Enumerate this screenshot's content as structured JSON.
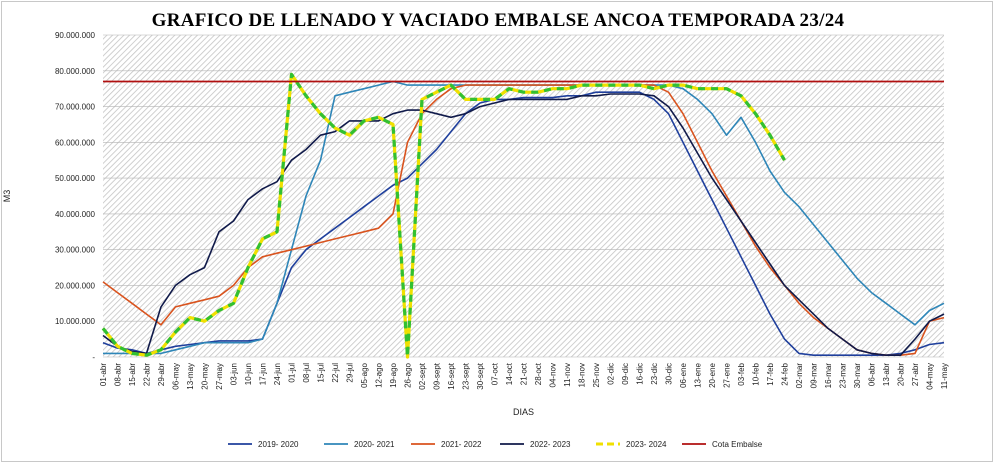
{
  "chart_data": {
    "type": "line",
    "title": "GRAFICO DE LLENADO Y VACIADO EMBALSE ANCOA TEMPORADA 23/24",
    "xlabel": "DIAS",
    "ylabel": "M3",
    "ylim": [
      0,
      90000000
    ],
    "y_ticks": [
      0,
      10000000,
      20000000,
      30000000,
      40000000,
      50000000,
      60000000,
      70000000,
      80000000,
      90000000
    ],
    "y_tick_labels": [
      "-",
      "10.000.000",
      "20.000.000",
      "30.000.000",
      "40.000.000",
      "50.000.000",
      "60.000.000",
      "70.000.000",
      "80.000.000",
      "90.000.000"
    ],
    "categories": [
      "01-abr",
      "08-abr",
      "15-abr",
      "22-abr",
      "29-abr",
      "06-may",
      "13-may",
      "20-may",
      "27-may",
      "03-jun",
      "10-jun",
      "17-jun",
      "24-jun",
      "01-jul",
      "08-jul",
      "15-jul",
      "22-jul",
      "29-jul",
      "05-ago",
      "12-ago",
      "19-ago",
      "26-ago",
      "02-sept",
      "09-sept",
      "16-sept",
      "23-sept",
      "30-sept",
      "07-oct",
      "14-oct",
      "21-oct",
      "28-oct",
      "04-nov",
      "11-nov",
      "18-nov",
      "25-nov",
      "02-dic",
      "09-dic",
      "16-dic",
      "23-dic",
      "30-dic",
      "06-ene",
      "13-ene",
      "20-ene",
      "27-ene",
      "03-feb",
      "10-feb",
      "17-feb",
      "24-feb",
      "02-mar",
      "09-mar",
      "16-mar",
      "23-mar",
      "30-mar",
      "06-abr",
      "13-abr",
      "20-abr",
      "27-abr",
      "04-may",
      "11-may"
    ],
    "series": [
      {
        "name": "2019- 2020",
        "color": "#1f3f9c",
        "values": [
          4000000,
          2500000,
          2000000,
          1000000,
          2000000,
          3000000,
          3500000,
          4000000,
          4500000,
          4500000,
          4500000,
          5000000,
          15000000,
          25000000,
          30000000,
          33000000,
          36000000,
          39000000,
          42000000,
          45000000,
          48000000,
          50000000,
          54000000,
          58000000,
          63000000,
          68000000,
          71000000,
          72000000,
          72000000,
          72500000,
          72500000,
          72500000,
          73000000,
          73000000,
          74000000,
          74000000,
          74000000,
          74000000,
          72000000,
          68000000,
          60000000,
          52000000,
          44000000,
          36000000,
          28000000,
          20000000,
          12000000,
          5000000,
          1000000,
          500000,
          500000,
          500000,
          500000,
          500000,
          500000,
          1000000,
          2000000,
          3500000,
          4000000
        ]
      },
      {
        "name": "2020- 2021",
        "color": "#2e86b8",
        "values": [
          1000000,
          1000000,
          1000000,
          1000000,
          1000000,
          2000000,
          3000000,
          4000000,
          4000000,
          4000000,
          4000000,
          5000000,
          15000000,
          30000000,
          45000000,
          55000000,
          73000000,
          74000000,
          75000000,
          76000000,
          77000000,
          76000000,
          76000000,
          76000000,
          76000000,
          76000000,
          76000000,
          76000000,
          76000000,
          76000000,
          76000000,
          76000000,
          76000000,
          76000000,
          76000000,
          76000000,
          76000000,
          76000000,
          76000000,
          76000000,
          75000000,
          72000000,
          68000000,
          62000000,
          67000000,
          60000000,
          52000000,
          46000000,
          42000000,
          37000000,
          32000000,
          27000000,
          22000000,
          18000000,
          15000000,
          12000000,
          9000000,
          13000000,
          15000000
        ]
      },
      {
        "name": "2021- 2022",
        "color": "#d9531e",
        "values": [
          21000000,
          18000000,
          15000000,
          12000000,
          9000000,
          14000000,
          15000000,
          16000000,
          17000000,
          20000000,
          25000000,
          28000000,
          29000000,
          30000000,
          31000000,
          32000000,
          33000000,
          34000000,
          35000000,
          36000000,
          40000000,
          60000000,
          68000000,
          72000000,
          75000000,
          76000000,
          76000000,
          76000000,
          76000000,
          76000000,
          76000000,
          76000000,
          76000000,
          76000000,
          76000000,
          76000000,
          76000000,
          76000000,
          76000000,
          74000000,
          68000000,
          60000000,
          52000000,
          45000000,
          38000000,
          31000000,
          25000000,
          20000000,
          15000000,
          11000000,
          8000000,
          5000000,
          2000000,
          1000000,
          500000,
          500000,
          1000000,
          10000000,
          11000000
        ]
      },
      {
        "name": "2022- 2023",
        "color": "#101a4a",
        "values": [
          6000000,
          3000000,
          1500000,
          1000000,
          14000000,
          20000000,
          23000000,
          25000000,
          35000000,
          38000000,
          44000000,
          47000000,
          49000000,
          55000000,
          58000000,
          62000000,
          63000000,
          66000000,
          66000000,
          66000000,
          68000000,
          69000000,
          69000000,
          68000000,
          67000000,
          68000000,
          70000000,
          71000000,
          72000000,
          72000000,
          72000000,
          72000000,
          72000000,
          73000000,
          73000000,
          73500000,
          73500000,
          73500000,
          73000000,
          70000000,
          64000000,
          57000000,
          50000000,
          44000000,
          38000000,
          32000000,
          26000000,
          20000000,
          16000000,
          12000000,
          8000000,
          5000000,
          2000000,
          1000000,
          500000,
          500000,
          5000000,
          10000000,
          12000000
        ]
      },
      {
        "name": "2023- 2024",
        "color": "#f0e000",
        "dash_color": "#32c032",
        "values": [
          8000000,
          3000000,
          1000000,
          500000,
          2000000,
          7000000,
          11000000,
          10000000,
          13000000,
          15000000,
          25000000,
          33000000,
          35000000,
          79000000,
          73000000,
          68000000,
          64000000,
          62000000,
          66000000,
          67000000,
          65000000,
          0,
          72000000,
          74000000,
          76000000,
          72000000,
          72000000,
          72000000,
          75000000,
          74000000,
          74000000,
          75000000,
          75000000,
          76000000,
          76000000,
          76000000,
          76000000,
          76000000,
          75000000,
          76000000,
          76000000,
          75000000,
          75000000,
          75000000,
          73000000,
          68000000,
          62000000,
          55000000,
          null,
          null,
          null,
          null,
          null,
          null,
          null,
          null,
          null,
          null,
          null
        ]
      },
      {
        "name": "Cota Embalse",
        "color": "#b01010",
        "values": [
          77000000,
          77000000,
          77000000,
          77000000,
          77000000,
          77000000,
          77000000,
          77000000,
          77000000,
          77000000,
          77000000,
          77000000,
          77000000,
          77000000,
          77000000,
          77000000,
          77000000,
          77000000,
          77000000,
          77000000,
          77000000,
          77000000,
          77000000,
          77000000,
          77000000,
          77000000,
          77000000,
          77000000,
          77000000,
          77000000,
          77000000,
          77000000,
          77000000,
          77000000,
          77000000,
          77000000,
          77000000,
          77000000,
          77000000,
          77000000,
          77000000,
          77000000,
          77000000,
          77000000,
          77000000,
          77000000,
          77000000,
          77000000,
          77000000,
          77000000,
          77000000,
          77000000,
          77000000,
          77000000,
          77000000,
          77000000,
          77000000,
          77000000,
          77000000
        ]
      }
    ]
  }
}
